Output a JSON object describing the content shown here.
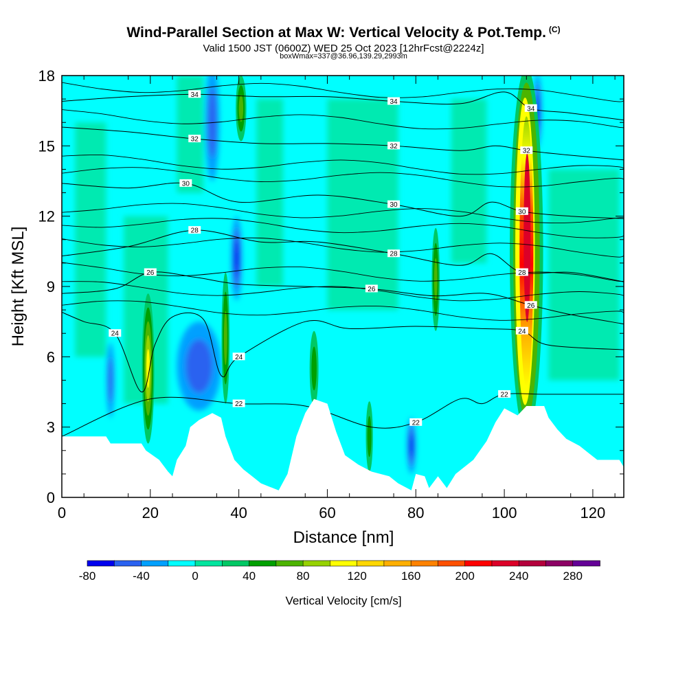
{
  "header": {
    "title": "Wind-Parallel Section at Max W: Vertical Velocity & Pot.Temp.",
    "copyright": "(C)",
    "valid_line": "Valid 1500 JST (0600Z) WED 25 Oct 2023 [12hrFcst@2224z]",
    "box_line": "boxWmax=337@36.96,139.29,2993m"
  },
  "chart_data": {
    "type": "heatmap",
    "title": "Wind-Parallel Section at Max W: Vertical Velocity & Pot.Temp.",
    "xlabel": "Distance [nm]",
    "ylabel": "Height [Kft MSL]",
    "xlim": [
      0,
      127
    ],
    "ylim": [
      0,
      18
    ],
    "xticks": [
      0,
      20,
      40,
      60,
      80,
      100,
      120
    ],
    "yticks": [
      0,
      3,
      6,
      9,
      12,
      15,
      18
    ],
    "colorbar": {
      "label": "Vertical Velocity [cm/s]",
      "ticks": [
        -80,
        -40,
        0,
        40,
        80,
        120,
        160,
        200,
        240,
        280
      ],
      "levels": [
        -80,
        -60,
        -40,
        -20,
        0,
        20,
        40,
        60,
        80,
        100,
        120,
        140,
        160,
        180,
        200,
        220,
        240,
        260,
        280,
        300
      ],
      "colors": [
        "#0000ee",
        "#2a62f0",
        "#00a0ff",
        "#00ffff",
        "#00e59e",
        "#00c864",
        "#00a000",
        "#4cb400",
        "#96d200",
        "#ffff00",
        "#ffd700",
        "#ffaf00",
        "#ff8200",
        "#ff5000",
        "#ff0000",
        "#dc0028",
        "#b4003c",
        "#8c0064",
        "#640096"
      ]
    },
    "terrain_kft": [
      [
        0,
        2.6
      ],
      [
        10,
        2.6
      ],
      [
        11,
        2.3
      ],
      [
        18,
        2.3
      ],
      [
        19,
        2.0
      ],
      [
        22,
        1.6
      ],
      [
        24,
        1.1
      ],
      [
        25,
        0.9
      ],
      [
        26,
        1.6
      ],
      [
        28,
        2.2
      ],
      [
        29,
        3.0
      ],
      [
        31,
        3.3
      ],
      [
        34,
        3.6
      ],
      [
        36,
        3.4
      ],
      [
        37,
        2.6
      ],
      [
        39,
        1.6
      ],
      [
        41,
        1.2
      ],
      [
        43,
        0.9
      ],
      [
        45,
        0.6
      ],
      [
        49,
        0.3
      ],
      [
        51,
        1.0
      ],
      [
        53,
        2.6
      ],
      [
        55,
        3.6
      ],
      [
        57,
        4.2
      ],
      [
        60,
        4.0
      ],
      [
        62,
        2.8
      ],
      [
        64,
        1.8
      ],
      [
        67,
        1.4
      ],
      [
        70,
        1.1
      ],
      [
        74,
        0.9
      ],
      [
        76,
        0.6
      ],
      [
        79,
        0.3
      ],
      [
        80,
        1.0
      ],
      [
        82,
        0.9
      ],
      [
        83,
        0.4
      ],
      [
        85,
        0.9
      ],
      [
        87,
        0.4
      ],
      [
        89,
        1.0
      ],
      [
        93,
        1.6
      ],
      [
        96,
        2.4
      ],
      [
        98,
        3.2
      ],
      [
        100,
        3.8
      ],
      [
        103,
        3.5
      ],
      [
        105,
        3.9
      ],
      [
        109,
        3.9
      ],
      [
        110,
        3.4
      ],
      [
        112,
        2.9
      ],
      [
        114,
        2.5
      ],
      [
        117,
        2.2
      ],
      [
        119,
        1.9
      ],
      [
        121,
        1.6
      ],
      [
        126,
        1.6
      ],
      [
        127,
        1.3
      ]
    ],
    "theta_contours": [
      {
        "label": "22",
        "points": [
          [
            0,
            2.6
          ],
          [
            20,
            4.2
          ],
          [
            40,
            4.0
          ],
          [
            55,
            3.9
          ],
          [
            70,
            3.0
          ],
          [
            80,
            3.2
          ],
          [
            90,
            4.2
          ],
          [
            95,
            4.0
          ],
          [
            100,
            4.4
          ],
          [
            110,
            4.4
          ],
          [
            127,
            4.4
          ]
        ]
      },
      {
        "label": "24",
        "points": [
          [
            0,
            7.9
          ],
          [
            5,
            7.5
          ],
          [
            12,
            7.0
          ],
          [
            18,
            4.5
          ],
          [
            21,
            6.5
          ],
          [
            25,
            7.7
          ],
          [
            32,
            7.6
          ],
          [
            36,
            5.2
          ],
          [
            40,
            6.0
          ],
          [
            55,
            7.5
          ],
          [
            65,
            7.2
          ],
          [
            80,
            7.3
          ],
          [
            95,
            7.2
          ],
          [
            104,
            7.1
          ],
          [
            110,
            6.5
          ],
          [
            127,
            6.3
          ]
        ]
      },
      {
        "label": "26",
        "points": [
          [
            0,
            8.7
          ],
          [
            12,
            8.9
          ],
          [
            20,
            9.6
          ],
          [
            30,
            9.4
          ],
          [
            40,
            9.1
          ],
          [
            55,
            9.0
          ],
          [
            70,
            8.9
          ],
          [
            84,
            8.6
          ],
          [
            96,
            8.7
          ],
          [
            106,
            8.2
          ],
          [
            115,
            7.8
          ],
          [
            127,
            7.4
          ]
        ]
      },
      {
        "label": "28",
        "points": [
          [
            0,
            10.3
          ],
          [
            15,
            10.7
          ],
          [
            30,
            11.4
          ],
          [
            45,
            10.9
          ],
          [
            58,
            10.9
          ],
          [
            75,
            10.4
          ],
          [
            90,
            9.9
          ],
          [
            97,
            10.4
          ],
          [
            104,
            9.6
          ],
          [
            115,
            9.6
          ],
          [
            127,
            9.2
          ]
        ]
      },
      {
        "label": "30",
        "points": [
          [
            0,
            13.4
          ],
          [
            15,
            13.2
          ],
          [
            28,
            13.4
          ],
          [
            40,
            12.6
          ],
          [
            58,
            12.9
          ],
          [
            75,
            12.5
          ],
          [
            90,
            12.0
          ],
          [
            97,
            12.6
          ],
          [
            104,
            12.2
          ],
          [
            115,
            12.0
          ],
          [
            127,
            11.9
          ]
        ]
      },
      {
        "label": "32",
        "points": [
          [
            0,
            15.8
          ],
          [
            15,
            15.6
          ],
          [
            30,
            15.3
          ],
          [
            45,
            15.1
          ],
          [
            60,
            15.1
          ],
          [
            75,
            15.0
          ],
          [
            90,
            14.8
          ],
          [
            98,
            15.0
          ],
          [
            105,
            14.8
          ],
          [
            115,
            14.6
          ],
          [
            127,
            14.4
          ]
        ]
      },
      {
        "label": "34",
        "points": [
          [
            0,
            16.9
          ],
          [
            15,
            17.1
          ],
          [
            30,
            17.2
          ],
          [
            45,
            17.1
          ],
          [
            60,
            17.1
          ],
          [
            75,
            16.9
          ],
          [
            90,
            16.8
          ],
          [
            100,
            17.3
          ],
          [
            106,
            16.6
          ],
          [
            115,
            16.4
          ],
          [
            127,
            16.1
          ]
        ]
      }
    ],
    "theta_extra_lines_kft": [
      8.2,
      9.0,
      9.8,
      11.0,
      11.8,
      12.4,
      13.9,
      14.4,
      16.3,
      17.6
    ],
    "updraft_cores": [
      {
        "x": 105,
        "y": 10.5,
        "rx": 2.6,
        "ry": 8.0,
        "peak_cm_s": 260
      },
      {
        "x": 19.5,
        "y": 5.5,
        "rx": 1.4,
        "ry": 3.2,
        "peak_cm_s": 100
      },
      {
        "x": 37,
        "y": 6.8,
        "rx": 0.9,
        "ry": 2.8,
        "peak_cm_s": 60
      },
      {
        "x": 84.5,
        "y": 9.3,
        "rx": 0.9,
        "ry": 2.2,
        "peak_cm_s": 60
      },
      {
        "x": 57,
        "y": 5.5,
        "rx": 1.0,
        "ry": 1.6,
        "peak_cm_s": 40
      },
      {
        "x": 69.5,
        "y": 2.6,
        "rx": 0.8,
        "ry": 1.5,
        "peak_cm_s": 40
      },
      {
        "x": 40.5,
        "y": 16.6,
        "rx": 1.2,
        "ry": 1.4,
        "peak_cm_s": 60
      }
    ],
    "downdraft_cores": [
      {
        "x": 31,
        "y": 5.6,
        "rx": 5.0,
        "ry": 1.9,
        "min_cm_s": -40
      },
      {
        "x": 39.5,
        "y": 10.2,
        "rx": 1.2,
        "ry": 1.8,
        "min_cm_s": -60
      },
      {
        "x": 107.5,
        "y": 16.5,
        "rx": 0.9,
        "ry": 1.6,
        "min_cm_s": -60
      },
      {
        "x": 79,
        "y": 2.2,
        "rx": 1.0,
        "ry": 1.2,
        "min_cm_s": -60
      },
      {
        "x": 34,
        "y": 16.0,
        "rx": 1.6,
        "ry": 2.5,
        "min_cm_s": -40
      },
      {
        "x": 11,
        "y": 5.0,
        "rx": 0.9,
        "ry": 1.6,
        "min_cm_s": -40
      }
    ]
  }
}
